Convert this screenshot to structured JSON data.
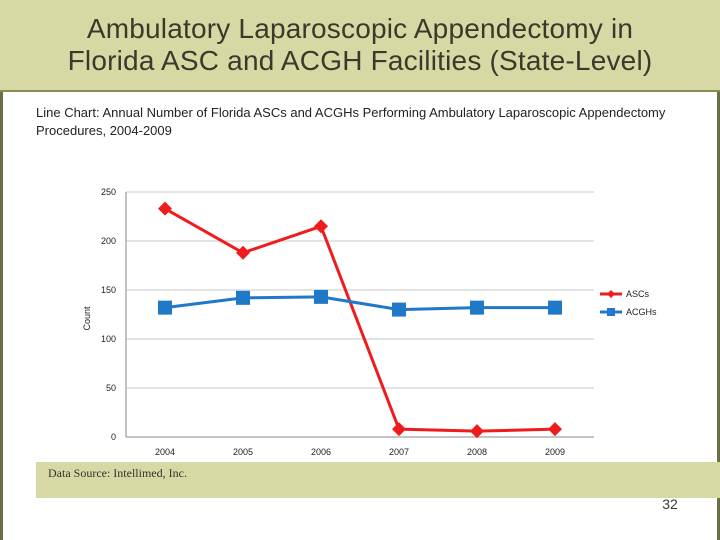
{
  "slide": {
    "title_line1": "Ambulatory Laparoscopic Appendectomy in",
    "title_line2": "Florida ASC and ACGH Facilities (State-Level)",
    "chart_description": "Line Chart: Annual Number of Florida ASCs and ACGHs Performing Ambulatory Laparoscopic Appendectomy Procedures, 2004-2009",
    "source": "Data Source: Intellimed, Inc.",
    "page_number": "32"
  },
  "colors": {
    "band": "#d7d9a4",
    "ascs": "#ee1c1c",
    "acghs": "#1f78c8"
  },
  "chart_data": {
    "type": "line",
    "title": "",
    "xlabel": "",
    "ylabel": "Count",
    "categories": [
      "2004",
      "2005",
      "2006",
      "2007",
      "2008",
      "2009"
    ],
    "ylim": [
      0,
      250
    ],
    "yticks": [
      0,
      50,
      100,
      150,
      200,
      250
    ],
    "grid": true,
    "legend": "right",
    "series": [
      {
        "name": "ASCs",
        "marker": "diamond",
        "color": "#ee1c1c",
        "values": [
          233,
          188,
          215,
          8,
          6,
          8
        ]
      },
      {
        "name": "ACGHs",
        "marker": "square",
        "color": "#1f78c8",
        "values": [
          132,
          142,
          143,
          130,
          132,
          132
        ]
      }
    ]
  }
}
